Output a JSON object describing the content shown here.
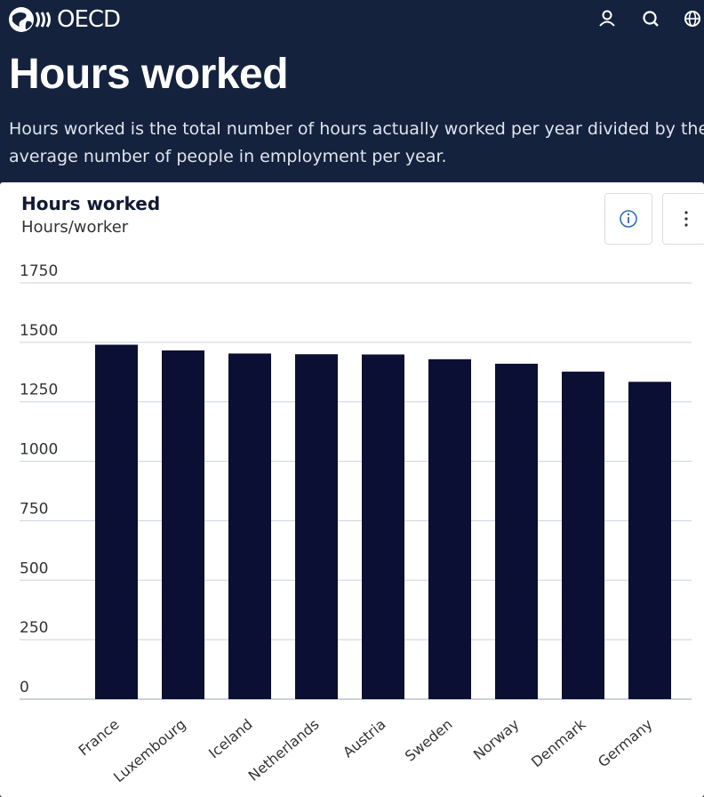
{
  "header": {
    "logo_text": "OECD",
    "icons": [
      "user-icon",
      "search-icon",
      "globe-icon"
    ]
  },
  "page": {
    "title": "Hours worked",
    "description": "Hours worked is the total number of hours actually worked per year divided by the average number of people in employment per year."
  },
  "card": {
    "title": "Hours worked",
    "subtitle": "Hours/worker",
    "info_icon": "info-icon",
    "more_icon": "more-vertical-icon"
  },
  "colors": {
    "background": "#14223d",
    "bar": "#0b0f33",
    "grid": "#ccd3df"
  },
  "chart_data": {
    "type": "bar",
    "categories": [
      "France",
      "Luxembourg",
      "Iceland",
      "Netherlands",
      "Austria",
      "Sweden",
      "Norway",
      "Denmark",
      "Germany"
    ],
    "values": [
      1490,
      1466,
      1453,
      1450,
      1449,
      1429,
      1410,
      1377,
      1334
    ],
    "ylim": [
      0,
      1750
    ],
    "yticks": [
      0,
      250,
      500,
      750,
      1000,
      1250,
      1500,
      1750
    ],
    "ylabels": [
      "0",
      "250",
      "500",
      "750",
      "1000",
      "1250",
      "1500",
      "1750"
    ],
    "grid": true
  }
}
